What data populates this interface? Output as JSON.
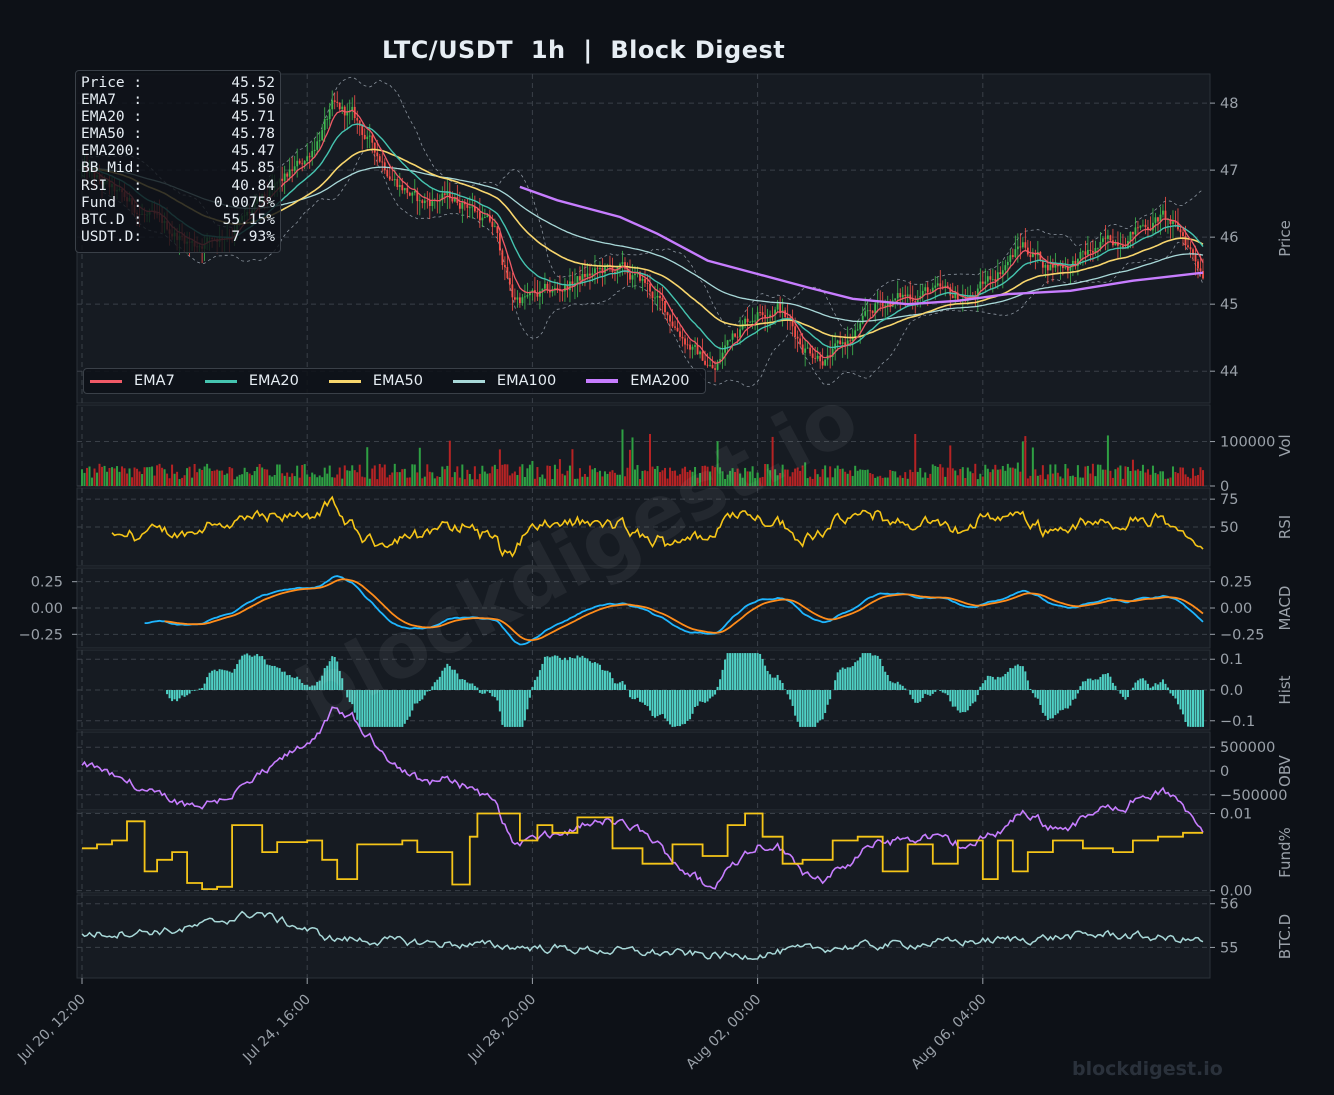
{
  "colors": {
    "background": "#0d1117",
    "panel": "#161b22",
    "grid": "#3a4048",
    "text": "#e6edf3",
    "axis_text": "#9aa1a9",
    "bull": "#3fb950",
    "bear": "#f85149",
    "ema7": "#f05a67",
    "ema20": "#45c4b0",
    "ema50": "#f8d66d",
    "ema100": "#a8d8d8",
    "ema200": "#c77dff",
    "rsi": "#f5c518",
    "macd": "#1fb6ff",
    "signal": "#ff8c1a",
    "hist": "#4fd1c5",
    "obv": "#c77dff",
    "funding": "#f5c518",
    "btcd": "#a8d8d8"
  },
  "chart_data": {
    "type": "line",
    "title": "LTC/USDT  1h  |  Block Digest",
    "watermark": "blockdigest.io",
    "watermark_corner": "blockdigest.io",
    "x_tick_labels": [
      "Jul 20, 12:00",
      "Jul 24, 16:00",
      "Jul 28, 20:00",
      "Aug 02, 00:00",
      "Aug 06, 04:00"
    ],
    "info_box": [
      {
        "label": "Price :",
        "value": "45.52"
      },
      {
        "label": "EMA7  :",
        "value": "45.50"
      },
      {
        "label": "EMA20 :",
        "value": "45.71"
      },
      {
        "label": "EMA50 :",
        "value": "45.78"
      },
      {
        "label": "EMA200:",
        "value": "45.47"
      },
      {
        "label": "BB Mid:",
        "value": "45.85"
      },
      {
        "label": "RSI   :",
        "value": "40.84"
      },
      {
        "label": "Fund  :",
        "value": "0.0075%"
      },
      {
        "label": "BTC.D :",
        "value": "55.15%"
      },
      {
        "label": "USDT.D:",
        "value": "7.93%"
      }
    ],
    "legend": [
      "EMA7",
      "EMA20",
      "EMA50",
      "EMA100",
      "EMA200"
    ],
    "panels": [
      {
        "id": "price",
        "ylabel": "Price",
        "ylim": [
          43.6,
          48.3
        ],
        "ticks": [
          44,
          45,
          46,
          47,
          48
        ],
        "tick_labels": [
          "44",
          "45",
          "46",
          "47",
          "48"
        ]
      },
      {
        "id": "volume",
        "ylabel": "Vol",
        "ylim": [
          0,
          180000
        ],
        "ticks": [
          0,
          100000
        ],
        "tick_labels": [
          "0",
          "100000"
        ]
      },
      {
        "id": "rsi",
        "ylabel": "RSI",
        "ylim": [
          15,
          85
        ],
        "ticks": [
          50,
          75
        ],
        "tick_labels": [
          "50",
          "75"
        ]
      },
      {
        "id": "macd",
        "ylabel": "MACD",
        "ylim": [
          -0.38,
          0.38
        ],
        "ticks": [
          -0.25,
          0,
          0.25
        ],
        "tick_labels": [
          "−0.25",
          "0.00",
          "0.25"
        ],
        "left_ticks": true
      },
      {
        "id": "hist",
        "ylabel": "Hist",
        "ylim": [
          -0.13,
          0.13
        ],
        "ticks": [
          -0.1,
          0,
          0.1
        ],
        "tick_labels": [
          "−0.1",
          "0.0",
          "0.1"
        ]
      },
      {
        "id": "obv",
        "ylabel": "OBV",
        "ylim": [
          -820000,
          820000
        ],
        "ticks": [
          -500000,
          0,
          500000
        ],
        "tick_labels": [
          "−500000",
          "0",
          "500000"
        ]
      },
      {
        "id": "funding",
        "ylabel": "Fund%",
        "ylim": [
          -0.0003,
          0.0102
        ],
        "ticks": [
          0,
          0.01
        ],
        "tick_labels": [
          "0.00",
          "0.01"
        ]
      },
      {
        "id": "btcd",
        "ylabel": "BTC.D",
        "ylim": [
          54.3,
          56.2
        ],
        "ticks": [
          55,
          56
        ],
        "tick_labels": [
          "55",
          "56"
        ]
      }
    ],
    "price_points": [
      [
        0,
        47.0
      ],
      [
        15,
        46.6
      ],
      [
        30,
        46.2
      ],
      [
        45,
        45.9
      ],
      [
        60,
        46.1
      ],
      [
        75,
        46.6
      ],
      [
        90,
        47.2
      ],
      [
        100,
        47.9
      ],
      [
        108,
        47.8
      ],
      [
        115,
        47.4
      ],
      [
        125,
        46.9
      ],
      [
        135,
        46.5
      ],
      [
        145,
        46.6
      ],
      [
        155,
        46.5
      ],
      [
        165,
        46.1
      ],
      [
        172,
        45.1
      ],
      [
        180,
        45.1
      ],
      [
        190,
        45.2
      ],
      [
        200,
        45.4
      ],
      [
        210,
        45.5
      ],
      [
        215,
        45.5
      ],
      [
        225,
        45.3
      ],
      [
        235,
        44.8
      ],
      [
        245,
        44.3
      ],
      [
        253,
        44.0
      ],
      [
        260,
        44.6
      ],
      [
        270,
        44.9
      ],
      [
        278,
        45.0
      ],
      [
        288,
        44.4
      ],
      [
        298,
        44.2
      ],
      [
        308,
        44.5
      ],
      [
        318,
        45.0
      ],
      [
        328,
        45.1
      ],
      [
        338,
        45.2
      ],
      [
        348,
        45.1
      ],
      [
        356,
        45.1
      ],
      [
        366,
        45.5
      ],
      [
        376,
        45.9
      ],
      [
        385,
        45.6
      ],
      [
        395,
        45.6
      ],
      [
        405,
        45.8
      ],
      [
        415,
        46.0
      ],
      [
        425,
        46.2
      ],
      [
        432,
        46.3
      ],
      [
        440,
        46.0
      ],
      [
        448,
        45.5
      ]
    ],
    "ema200_points": [
      [
        175,
        46.75
      ],
      [
        190,
        46.55
      ],
      [
        200,
        46.45
      ],
      [
        215,
        46.3
      ],
      [
        230,
        46.05
      ],
      [
        250,
        45.65
      ],
      [
        270,
        45.45
      ],
      [
        290,
        45.25
      ],
      [
        308,
        45.08
      ],
      [
        330,
        45.0
      ],
      [
        350,
        45.05
      ],
      [
        370,
        45.15
      ],
      [
        395,
        45.2
      ],
      [
        420,
        45.35
      ],
      [
        448,
        45.47
      ]
    ],
    "btcd_points": [
      [
        0,
        55.3
      ],
      [
        40,
        55.4
      ],
      [
        70,
        55.8
      ],
      [
        100,
        55.2
      ],
      [
        140,
        55.1
      ],
      [
        180,
        55.0
      ],
      [
        220,
        54.9
      ],
      [
        260,
        54.8
      ],
      [
        300,
        55.0
      ],
      [
        340,
        55.1
      ],
      [
        380,
        55.2
      ],
      [
        410,
        55.3
      ],
      [
        448,
        55.15
      ]
    ],
    "funding_steps": [
      [
        0,
        0.0055
      ],
      [
        6,
        0.006
      ],
      [
        12,
        0.0065
      ],
      [
        18,
        0.009
      ],
      [
        25,
        0.0025
      ],
      [
        30,
        0.004
      ],
      [
        36,
        0.005
      ],
      [
        42,
        0.001
      ],
      [
        48,
        0.0002
      ],
      [
        54,
        0.0005
      ],
      [
        60,
        0.0085
      ],
      [
        72,
        0.005
      ],
      [
        78,
        0.0063
      ],
      [
        90,
        0.0065
      ],
      [
        96,
        0.004
      ],
      [
        102,
        0.0015
      ],
      [
        110,
        0.006
      ],
      [
        128,
        0.0065
      ],
      [
        134,
        0.005
      ],
      [
        148,
        0.0008
      ],
      [
        155,
        0.007
      ],
      [
        158,
        0.01
      ],
      [
        175,
        0.0065
      ],
      [
        182,
        0.0085
      ],
      [
        188,
        0.0075
      ],
      [
        198,
        0.0095
      ],
      [
        212,
        0.0055
      ],
      [
        224,
        0.0035
      ],
      [
        236,
        0.006
      ],
      [
        248,
        0.0045
      ],
      [
        258,
        0.0085
      ],
      [
        265,
        0.01
      ],
      [
        272,
        0.007
      ],
      [
        280,
        0.0035
      ],
      [
        288,
        0.004
      ],
      [
        300,
        0.0065
      ],
      [
        310,
        0.007
      ],
      [
        320,
        0.0025
      ],
      [
        330,
        0.006
      ],
      [
        340,
        0.0035
      ],
      [
        350,
        0.0065
      ],
      [
        360,
        0.0015
      ],
      [
        366,
        0.0065
      ],
      [
        372,
        0.0025
      ],
      [
        378,
        0.005
      ],
      [
        388,
        0.0065
      ],
      [
        400,
        0.0055
      ],
      [
        412,
        0.005
      ],
      [
        420,
        0.0065
      ],
      [
        430,
        0.007
      ],
      [
        440,
        0.0075
      ]
    ],
    "n_bars": 449,
    "x_tick_bars": [
      0,
      90,
      180,
      270,
      360
    ]
  }
}
